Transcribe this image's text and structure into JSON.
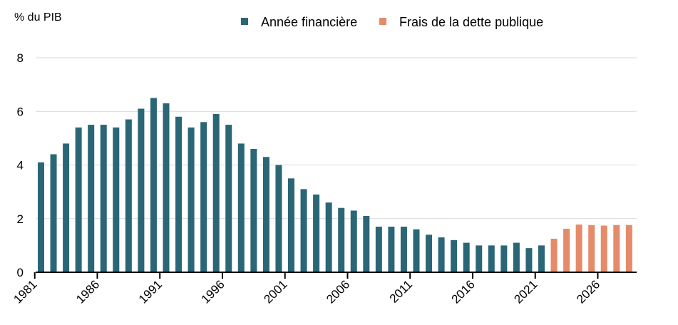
{
  "colors": {
    "historical": "#2a6676",
    "projected": "#e58b69",
    "grid": "#d9d9d9",
    "axis": "#000000"
  },
  "chart_data": {
    "type": "bar",
    "y_unit_label": "% du PIB",
    "ylim": [
      0,
      8
    ],
    "yticks": [
      0,
      2,
      4,
      6,
      8
    ],
    "grid": true,
    "legend_position": "top",
    "x_tick_labels": [
      "1981",
      "1986",
      "1991",
      "1996",
      "2001",
      "2006",
      "2011",
      "2016",
      "2021",
      "2026"
    ],
    "categories": [
      1981,
      1982,
      1983,
      1984,
      1985,
      1986,
      1987,
      1988,
      1989,
      1990,
      1991,
      1992,
      1993,
      1994,
      1995,
      1996,
      1997,
      1998,
      1999,
      2000,
      2001,
      2002,
      2003,
      2004,
      2005,
      2006,
      2007,
      2008,
      2009,
      2010,
      2011,
      2012,
      2013,
      2014,
      2015,
      2016,
      2017,
      2018,
      2019,
      2020,
      2021,
      2022,
      2023,
      2024,
      2025,
      2026,
      2027,
      2028
    ],
    "series": [
      {
        "name": "Année financière",
        "color_key": "historical",
        "values": [
          4.1,
          4.4,
          4.8,
          5.4,
          5.5,
          5.5,
          5.4,
          5.7,
          6.1,
          6.5,
          6.3,
          5.8,
          5.4,
          5.6,
          5.9,
          5.5,
          4.8,
          4.6,
          4.3,
          4.0,
          3.5,
          3.1,
          2.9,
          2.6,
          2.4,
          2.3,
          2.1,
          1.7,
          1.7,
          1.7,
          1.6,
          1.4,
          1.3,
          1.2,
          1.1,
          1.0,
          1.0,
          1.0,
          1.1,
          0.9,
          1.0,
          null,
          null,
          null,
          null,
          null,
          null,
          null
        ]
      },
      {
        "name": "Frais de la dette publique",
        "color_key": "projected",
        "values": [
          null,
          null,
          null,
          null,
          null,
          null,
          null,
          null,
          null,
          null,
          null,
          null,
          null,
          null,
          null,
          null,
          null,
          null,
          null,
          null,
          null,
          null,
          null,
          null,
          null,
          null,
          null,
          null,
          null,
          null,
          null,
          null,
          null,
          null,
          null,
          null,
          null,
          null,
          null,
          null,
          null,
          1.25,
          1.62,
          1.78,
          1.76,
          1.74,
          1.76,
          1.76
        ]
      }
    ]
  }
}
